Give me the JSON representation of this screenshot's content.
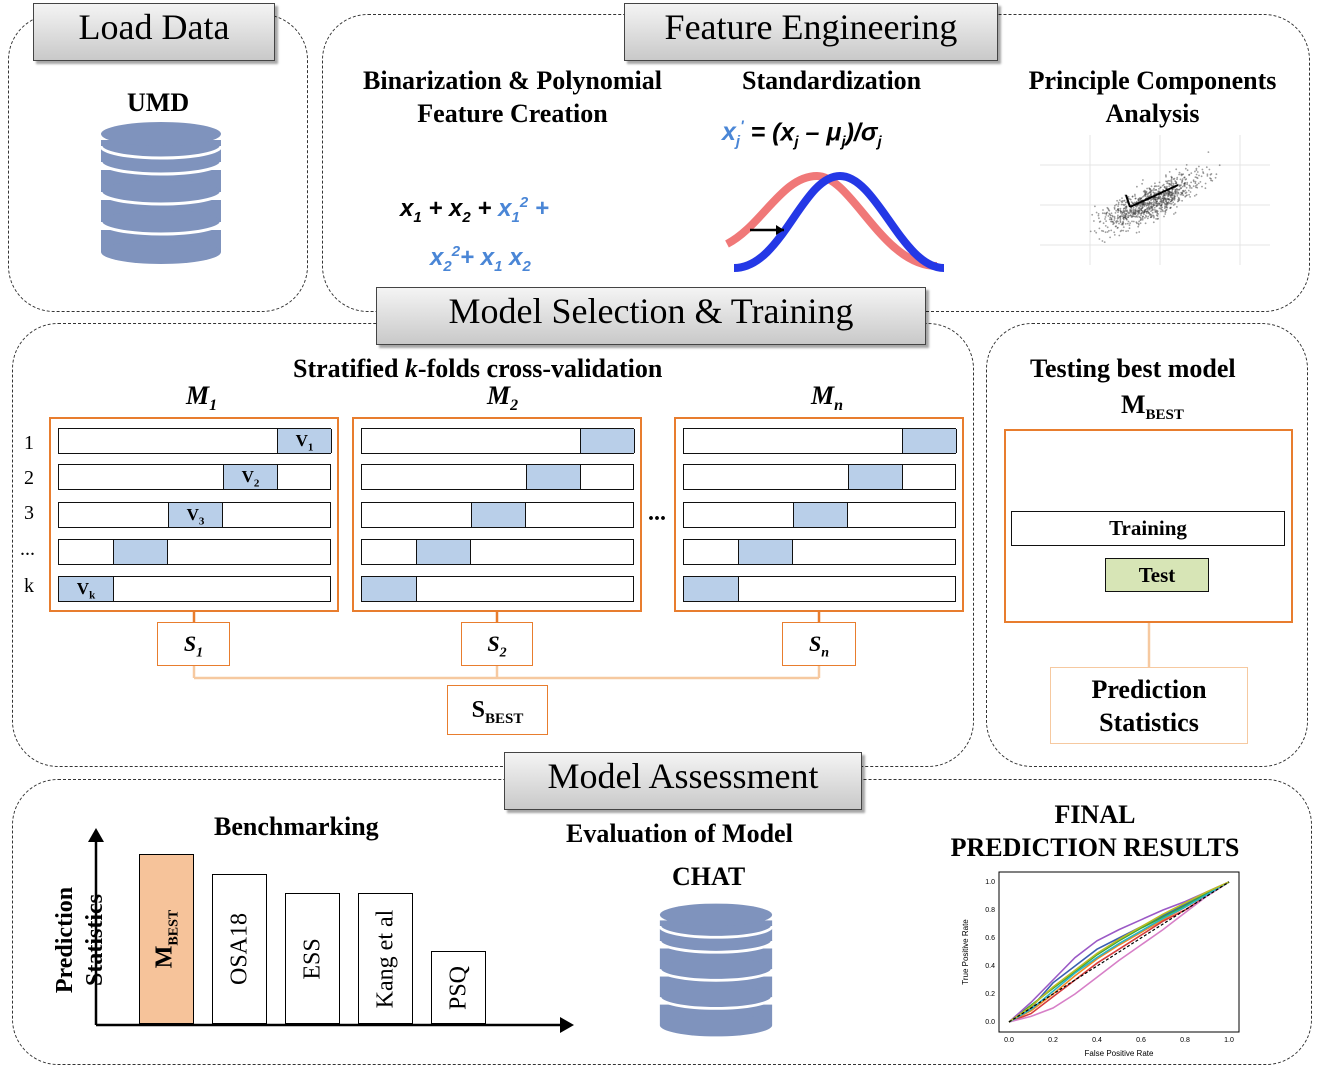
{
  "stages": {
    "load_data": "Load Data",
    "feature_engineering": "Feature Engineering",
    "model_selection": "Model Selection & Training",
    "model_assessment": "Model Assessment"
  },
  "load": {
    "db_label": "UMD"
  },
  "features": {
    "binarization_l1": "Binarization & Polynomial",
    "binarization_l2": "Feature Creation",
    "poly_black": "x",
    "standardization": "Standardization",
    "pca_l1": "Principle Components",
    "pca_l2": "Analysis"
  },
  "cv": {
    "title_pre": "Stratified ",
    "title_k": "k",
    "title_post": "-folds cross-validation",
    "models": [
      {
        "main": "M",
        "sub": "1"
      },
      {
        "main": "M",
        "sub": "2"
      },
      {
        "main": "M",
        "sub": "n"
      }
    ],
    "row_labels": [
      "1",
      "2",
      "3",
      "...",
      "k"
    ],
    "val_labels": [
      {
        "main": "V",
        "sub": "1"
      },
      {
        "main": "V",
        "sub": "2"
      },
      {
        "main": "V",
        "sub": "3"
      },
      {
        "main": "",
        "sub": ""
      },
      {
        "main": "V",
        "sub": "k"
      }
    ],
    "ellipsis": "...",
    "scores": [
      {
        "main": "S",
        "sub": "1"
      },
      {
        "main": "S",
        "sub": "2"
      },
      {
        "main": "S",
        "sub": "n"
      }
    ],
    "best_main": "S",
    "best_sub": "BEST"
  },
  "testing": {
    "title": "Testing best model",
    "model_main": "M",
    "model_sub": "BEST",
    "training": "Training",
    "test": "Test",
    "pred_l1": "Prediction",
    "pred_l2": "Statistics"
  },
  "assessment": {
    "benchmarking": "Benchmarking",
    "y_l1": "Prediction",
    "y_l2": "Statistics",
    "bars": [
      {
        "label": "M",
        "sub": "BEST",
        "value": 1.0,
        "color": "#f6c39a"
      },
      {
        "label": "OSA18",
        "sub": "",
        "value": 0.88,
        "color": "#ffffff"
      },
      {
        "label": "ESS",
        "sub": "",
        "value": 0.77,
        "color": "#ffffff"
      },
      {
        "label": "Kang et al",
        "sub": "",
        "value": 0.77,
        "color": "#ffffff"
      },
      {
        "label": "PSQ",
        "sub": "",
        "value": 0.43,
        "color": "#ffffff"
      }
    ],
    "evaluation": "Evaluation of Model",
    "db_label": "CHAT",
    "final_l1": "FINAL",
    "final_l2": "PREDICTION RESULTS"
  },
  "chart_data": {
    "type": "line",
    "xlabel": "False Positive Rate",
    "ylabel": "True Positive Rate",
    "xlim": [
      0.0,
      1.0
    ],
    "ylim": [
      0.0,
      1.0
    ],
    "x_ticks": [
      "0.0",
      "0.2",
      "0.4",
      "0.6",
      "0.8",
      "1.0"
    ],
    "y_ticks": [
      "0.0",
      "0.2",
      "0.4",
      "0.6",
      "0.8",
      "1.0"
    ],
    "series": [
      {
        "color": "#3a5fb0",
        "x": [
          0,
          0.1,
          0.2,
          0.3,
          0.4,
          0.5,
          0.6,
          0.7,
          0.8,
          0.9,
          1
        ],
        "y": [
          0,
          0.1,
          0.28,
          0.4,
          0.52,
          0.6,
          0.68,
          0.76,
          0.84,
          0.92,
          1
        ]
      },
      {
        "color": "#f08a24",
        "x": [
          0,
          0.1,
          0.2,
          0.3,
          0.4,
          0.5,
          0.6,
          0.7,
          0.8,
          0.9,
          1
        ],
        "y": [
          0,
          0.08,
          0.2,
          0.33,
          0.45,
          0.55,
          0.64,
          0.73,
          0.82,
          0.91,
          1
        ]
      },
      {
        "color": "#3aa53a",
        "x": [
          0,
          0.1,
          0.2,
          0.3,
          0.4,
          0.5,
          0.6,
          0.7,
          0.8,
          0.9,
          1
        ],
        "y": [
          0,
          0.12,
          0.24,
          0.36,
          0.48,
          0.58,
          0.67,
          0.75,
          0.83,
          0.92,
          1
        ]
      },
      {
        "color": "#d43c3c",
        "x": [
          0,
          0.1,
          0.2,
          0.3,
          0.4,
          0.5,
          0.6,
          0.7,
          0.8,
          0.9,
          1
        ],
        "y": [
          0,
          0.06,
          0.18,
          0.3,
          0.42,
          0.52,
          0.62,
          0.72,
          0.8,
          0.9,
          1
        ]
      },
      {
        "color": "#9b59c6",
        "x": [
          0,
          0.1,
          0.2,
          0.3,
          0.4,
          0.5,
          0.6,
          0.7,
          0.8,
          0.9,
          1
        ],
        "y": [
          0,
          0.14,
          0.3,
          0.46,
          0.58,
          0.66,
          0.73,
          0.8,
          0.86,
          0.93,
          1
        ]
      },
      {
        "color": "#d77fc7",
        "x": [
          0,
          0.1,
          0.2,
          0.3,
          0.4,
          0.5,
          0.6,
          0.7,
          0.8,
          0.9,
          1
        ],
        "y": [
          0,
          0.04,
          0.1,
          0.2,
          0.32,
          0.44,
          0.55,
          0.66,
          0.78,
          0.9,
          1
        ]
      },
      {
        "color": "#26b5c6",
        "x": [
          0,
          0.1,
          0.2,
          0.3,
          0.4,
          0.5,
          0.6,
          0.7,
          0.8,
          0.9,
          1
        ],
        "y": [
          0,
          0.09,
          0.22,
          0.35,
          0.46,
          0.56,
          0.65,
          0.74,
          0.82,
          0.91,
          1
        ]
      },
      {
        "color": "#bcbd22",
        "x": [
          0,
          0.1,
          0.2,
          0.3,
          0.4,
          0.5,
          0.6,
          0.7,
          0.8,
          0.9,
          1
        ],
        "y": [
          0,
          0.11,
          0.25,
          0.37,
          0.49,
          0.59,
          0.68,
          0.77,
          0.85,
          0.93,
          1
        ]
      },
      {
        "color": "#000000",
        "dashed": true,
        "x": [
          0,
          1
        ],
        "y": [
          0,
          1
        ]
      }
    ]
  }
}
